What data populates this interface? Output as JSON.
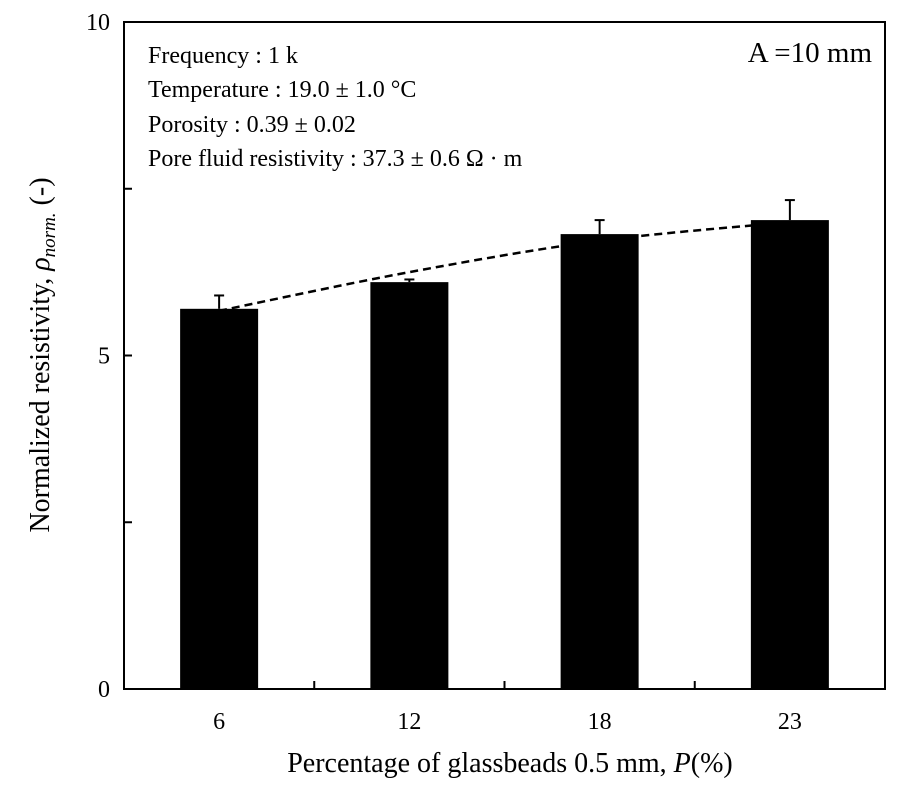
{
  "chart_data": {
    "type": "bar",
    "categories": [
      "6",
      "12",
      "18",
      "23"
    ],
    "values": [
      5.7,
      6.1,
      6.82,
      7.03
    ],
    "error_upper": [
      5.9,
      6.14,
      7.03,
      7.33
    ],
    "trend_line": [
      5.67,
      6.25,
      6.72,
      7.0
    ],
    "xlabel": "Percentage of glassbeads 0.5 mm, P(%)",
    "ylabel": "Normalized resistivity, ρnorm. (-)",
    "ylim": [
      0,
      10
    ],
    "yticks": [
      "0",
      "5",
      "10"
    ],
    "grid": false,
    "bar_color": "#000000",
    "annotations": [
      "Frequency : 1 k",
      "Temperature : 19.0 ± 1.0 °C",
      "Porosity : 0.39 ± 0.02",
      "Pore fluid resistivity : 37.3 ± 0.6 Ω · m"
    ],
    "corner_label": "A =10 mm"
  }
}
